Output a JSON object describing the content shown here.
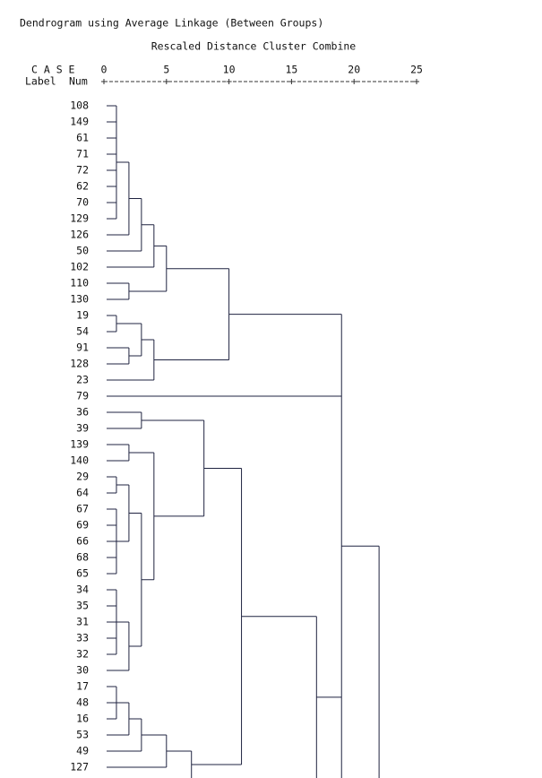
{
  "chart_data": {
    "type": "dendrogram",
    "title": "Dendrogram using Average Linkage (Between Groups)",
    "x_label": "Rescaled Distance Cluster Combine",
    "case_header": "C A S E",
    "label_header": "Label",
    "num_header": "Num",
    "xlim": [
      0,
      25
    ],
    "xticks": [
      0,
      5,
      10,
      15,
      20,
      25
    ],
    "line_color": "#1f2340",
    "tree": {
      "distance": 22,
      "continues_below": true,
      "children": [
        {
          "distance": 19,
          "continues_below": true,
          "children": [
            {
              "distance": 10,
              "children": [
                {
                  "distance": 5,
                  "children": [
                    {
                      "distance": 4,
                      "children": [
                        {
                          "distance": 3,
                          "children": [
                            {
                              "distance": 2,
                              "children": [
                                {
                                  "distance": 1,
                                  "children": [
                                    "108",
                                    "149",
                                    "61",
                                    "71",
                                    "72",
                                    "62",
                                    "70",
                                    "129"
                                  ]
                                },
                                "126"
                              ]
                            },
                            "50"
                          ]
                        },
                        "102"
                      ]
                    },
                    {
                      "distance": 2,
                      "children": [
                        "110",
                        "130"
                      ]
                    }
                  ]
                },
                {
                  "distance": 4,
                  "children": [
                    {
                      "distance": 3,
                      "children": [
                        {
                          "distance": 1,
                          "children": [
                            "19",
                            "54"
                          ]
                        },
                        {
                          "distance": 2,
                          "children": [
                            "91",
                            "128"
                          ]
                        }
                      ]
                    },
                    "23"
                  ]
                }
              ]
            },
            "79",
            {
              "distance": 17,
              "continues_below": true,
              "children": [
                {
                  "distance": 11,
                  "children": [
                    {
                      "distance": 8,
                      "children": [
                        {
                          "distance": 3,
                          "children": [
                            "36",
                            "39"
                          ]
                        },
                        {
                          "distance": 4,
                          "children": [
                            {
                              "distance": 2,
                              "children": [
                                "139",
                                "140"
                              ]
                            },
                            {
                              "distance": 3,
                              "children": [
                                {
                                  "distance": 2,
                                  "children": [
                                    {
                                      "distance": 1,
                                      "children": [
                                        "29",
                                        "64"
                                      ]
                                    },
                                    {
                                      "distance": 1,
                                      "children": [
                                        "67",
                                        "69",
                                        "66",
                                        "68",
                                        "65"
                                      ]
                                    }
                                  ]
                                },
                                {
                                  "distance": 2,
                                  "children": [
                                    {
                                      "distance": 1,
                                      "children": [
                                        "34",
                                        "35",
                                        "31",
                                        "33",
                                        "32"
                                      ]
                                    },
                                    "30"
                                  ]
                                }
                              ]
                            }
                          ]
                        }
                      ]
                    },
                    {
                      "distance": 7,
                      "continues_below": true,
                      "children": [
                        {
                          "distance": 5,
                          "children": [
                            {
                              "distance": 3,
                              "children": [
                                {
                                  "distance": 2,
                                  "children": [
                                    {
                                      "distance": 1,
                                      "children": [
                                        "17",
                                        "48",
                                        "16"
                                      ]
                                    },
                                    "53"
                                  ]
                                },
                                "49"
                              ]
                            },
                            "127"
                          ]
                        }
                      ]
                    }
                  ]
                }
              ]
            }
          ]
        }
      ]
    }
  }
}
